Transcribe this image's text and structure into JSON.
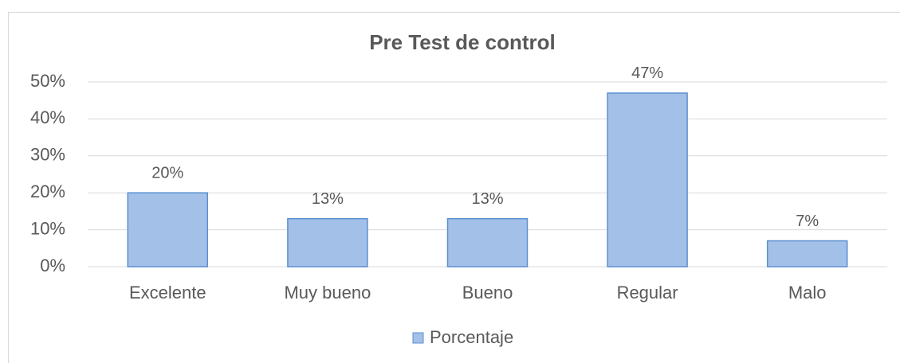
{
  "chart_data": {
    "type": "bar",
    "title": "Pre Test de control",
    "categories": [
      "Excelente",
      "Muy bueno",
      "Bueno",
      "Regular",
      "Malo"
    ],
    "series": [
      {
        "name": "Porcentaje",
        "color": "#a3c0e8",
        "values": [
          20,
          13,
          13,
          47,
          7
        ],
        "value_labels": [
          "20%",
          "13%",
          "13%",
          "47%",
          "7%"
        ]
      }
    ],
    "ylim": [
      0,
      50
    ],
    "yticks": [
      {
        "value": 0,
        "label": "0%"
      },
      {
        "value": 10,
        "label": "10%"
      },
      {
        "value": 20,
        "label": "20%"
      },
      {
        "value": 30,
        "label": "30%"
      },
      {
        "value": 40,
        "label": "40%"
      },
      {
        "value": 50,
        "label": "50%"
      }
    ],
    "grid": true,
    "legend": "bottom"
  }
}
